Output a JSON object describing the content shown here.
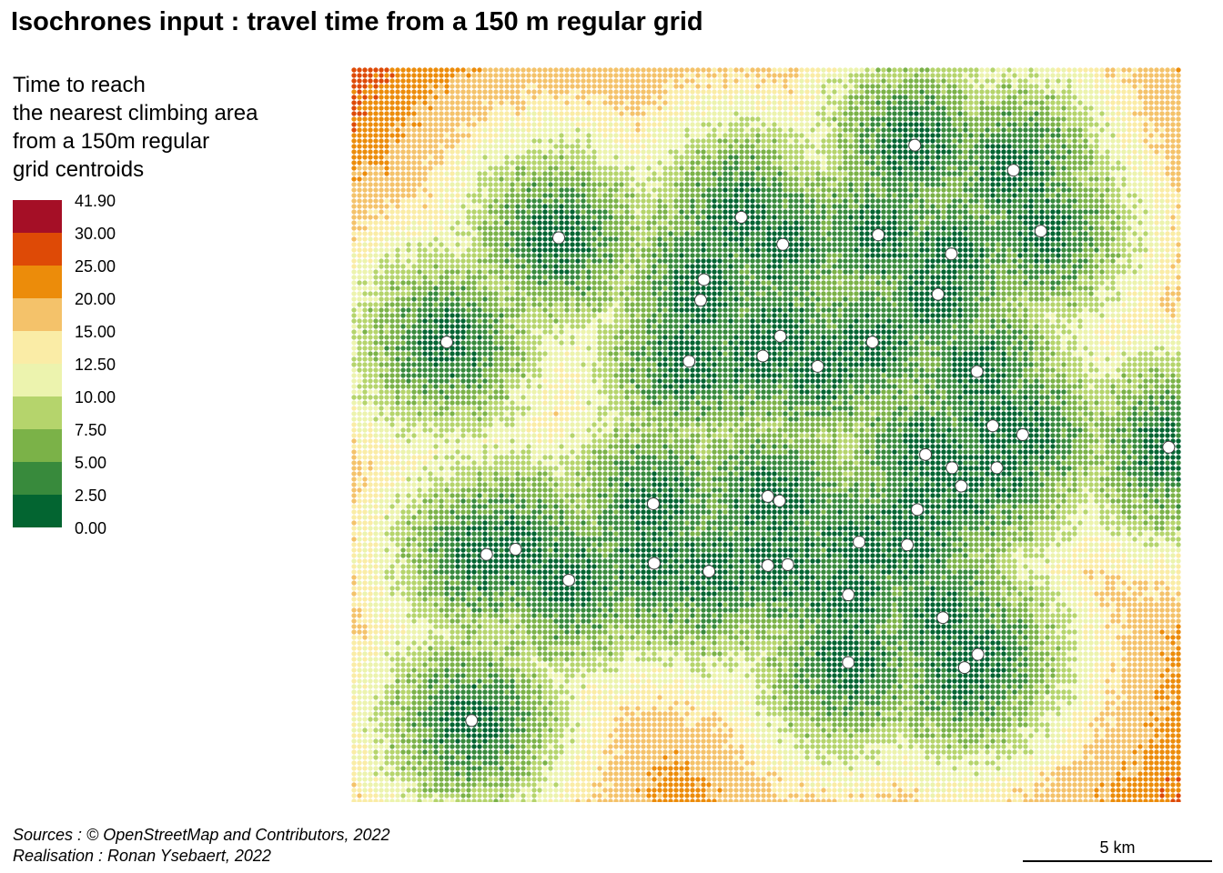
{
  "title": "Isochrones input : travel time from a 150 m regular grid",
  "legend": {
    "title_lines": [
      "Time to reach",
      "the nearest climbing area",
      "from a 150m regular",
      "grid centroids"
    ],
    "breaks": [
      "41.90",
      "30.00",
      "25.00",
      "20.00",
      "15.00",
      "12.50",
      "10.00",
      "7.50",
      "5.00",
      "2.50",
      "0.00"
    ],
    "colors": [
      "#a50f26",
      "#de4a06",
      "#ec8c0a",
      "#f4c26a",
      "#faeca6",
      "#ecf3ae",
      "#b5d46c",
      "#7bb248",
      "#388a3c",
      "#036531"
    ],
    "dot_color": "#ffffff",
    "dot_stroke": "#444444"
  },
  "map": {
    "grid_step_m": 150,
    "climbing_areas": [
      [
        0.679,
        0.106
      ],
      [
        0.798,
        0.14
      ],
      [
        0.47,
        0.204
      ],
      [
        0.52,
        0.241
      ],
      [
        0.635,
        0.228
      ],
      [
        0.25,
        0.232
      ],
      [
        0.723,
        0.254
      ],
      [
        0.831,
        0.223
      ],
      [
        0.425,
        0.289
      ],
      [
        0.421,
        0.317
      ],
      [
        0.707,
        0.309
      ],
      [
        0.115,
        0.374
      ],
      [
        0.407,
        0.4
      ],
      [
        0.517,
        0.366
      ],
      [
        0.496,
        0.393
      ],
      [
        0.562,
        0.407
      ],
      [
        0.628,
        0.374
      ],
      [
        0.754,
        0.414
      ],
      [
        0.773,
        0.488
      ],
      [
        0.809,
        0.5
      ],
      [
        0.692,
        0.527
      ],
      [
        0.724,
        0.545
      ],
      [
        0.778,
        0.545
      ],
      [
        0.735,
        0.57
      ],
      [
        0.985,
        0.517
      ],
      [
        0.364,
        0.594
      ],
      [
        0.502,
        0.584
      ],
      [
        0.516,
        0.59
      ],
      [
        0.682,
        0.602
      ],
      [
        0.163,
        0.663
      ],
      [
        0.198,
        0.656
      ],
      [
        0.262,
        0.698
      ],
      [
        0.365,
        0.675
      ],
      [
        0.431,
        0.686
      ],
      [
        0.502,
        0.678
      ],
      [
        0.526,
        0.677
      ],
      [
        0.612,
        0.646
      ],
      [
        0.67,
        0.65
      ],
      [
        0.599,
        0.718
      ],
      [
        0.713,
        0.749
      ],
      [
        0.755,
        0.799
      ],
      [
        0.739,
        0.817
      ],
      [
        0.599,
        0.81
      ],
      [
        0.145,
        0.889
      ]
    ]
  },
  "credits": {
    "sources": "Sources : © OpenStreetMap and Contributors, 2022",
    "realisation": "Realisation : Ronan Ysebaert, 2022"
  },
  "scale_bar": {
    "label": "5 km"
  }
}
